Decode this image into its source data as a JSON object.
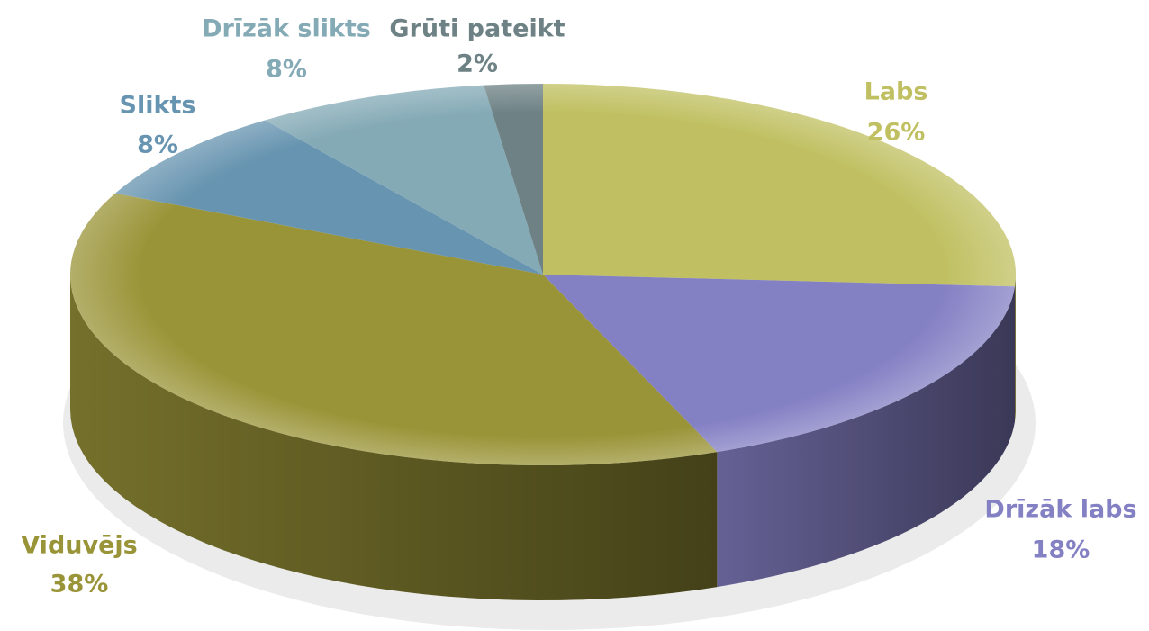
{
  "chart_data": {
    "type": "pie3d",
    "categories": [
      "Labs",
      "Drīzāk labs",
      "Viduvējs",
      "Slikts",
      "Drīzāk slikts",
      "Grūti pateikt"
    ],
    "values": [
      26,
      18,
      38,
      8,
      8,
      2
    ],
    "value_labels": [
      "26%",
      "18%",
      "38%",
      "8%",
      "8%",
      "2%"
    ],
    "colors": [
      "#c0c062",
      "#8480c4",
      "#9a9438",
      "#6794b0",
      "#84aab6",
      "#6e8285"
    ]
  }
}
